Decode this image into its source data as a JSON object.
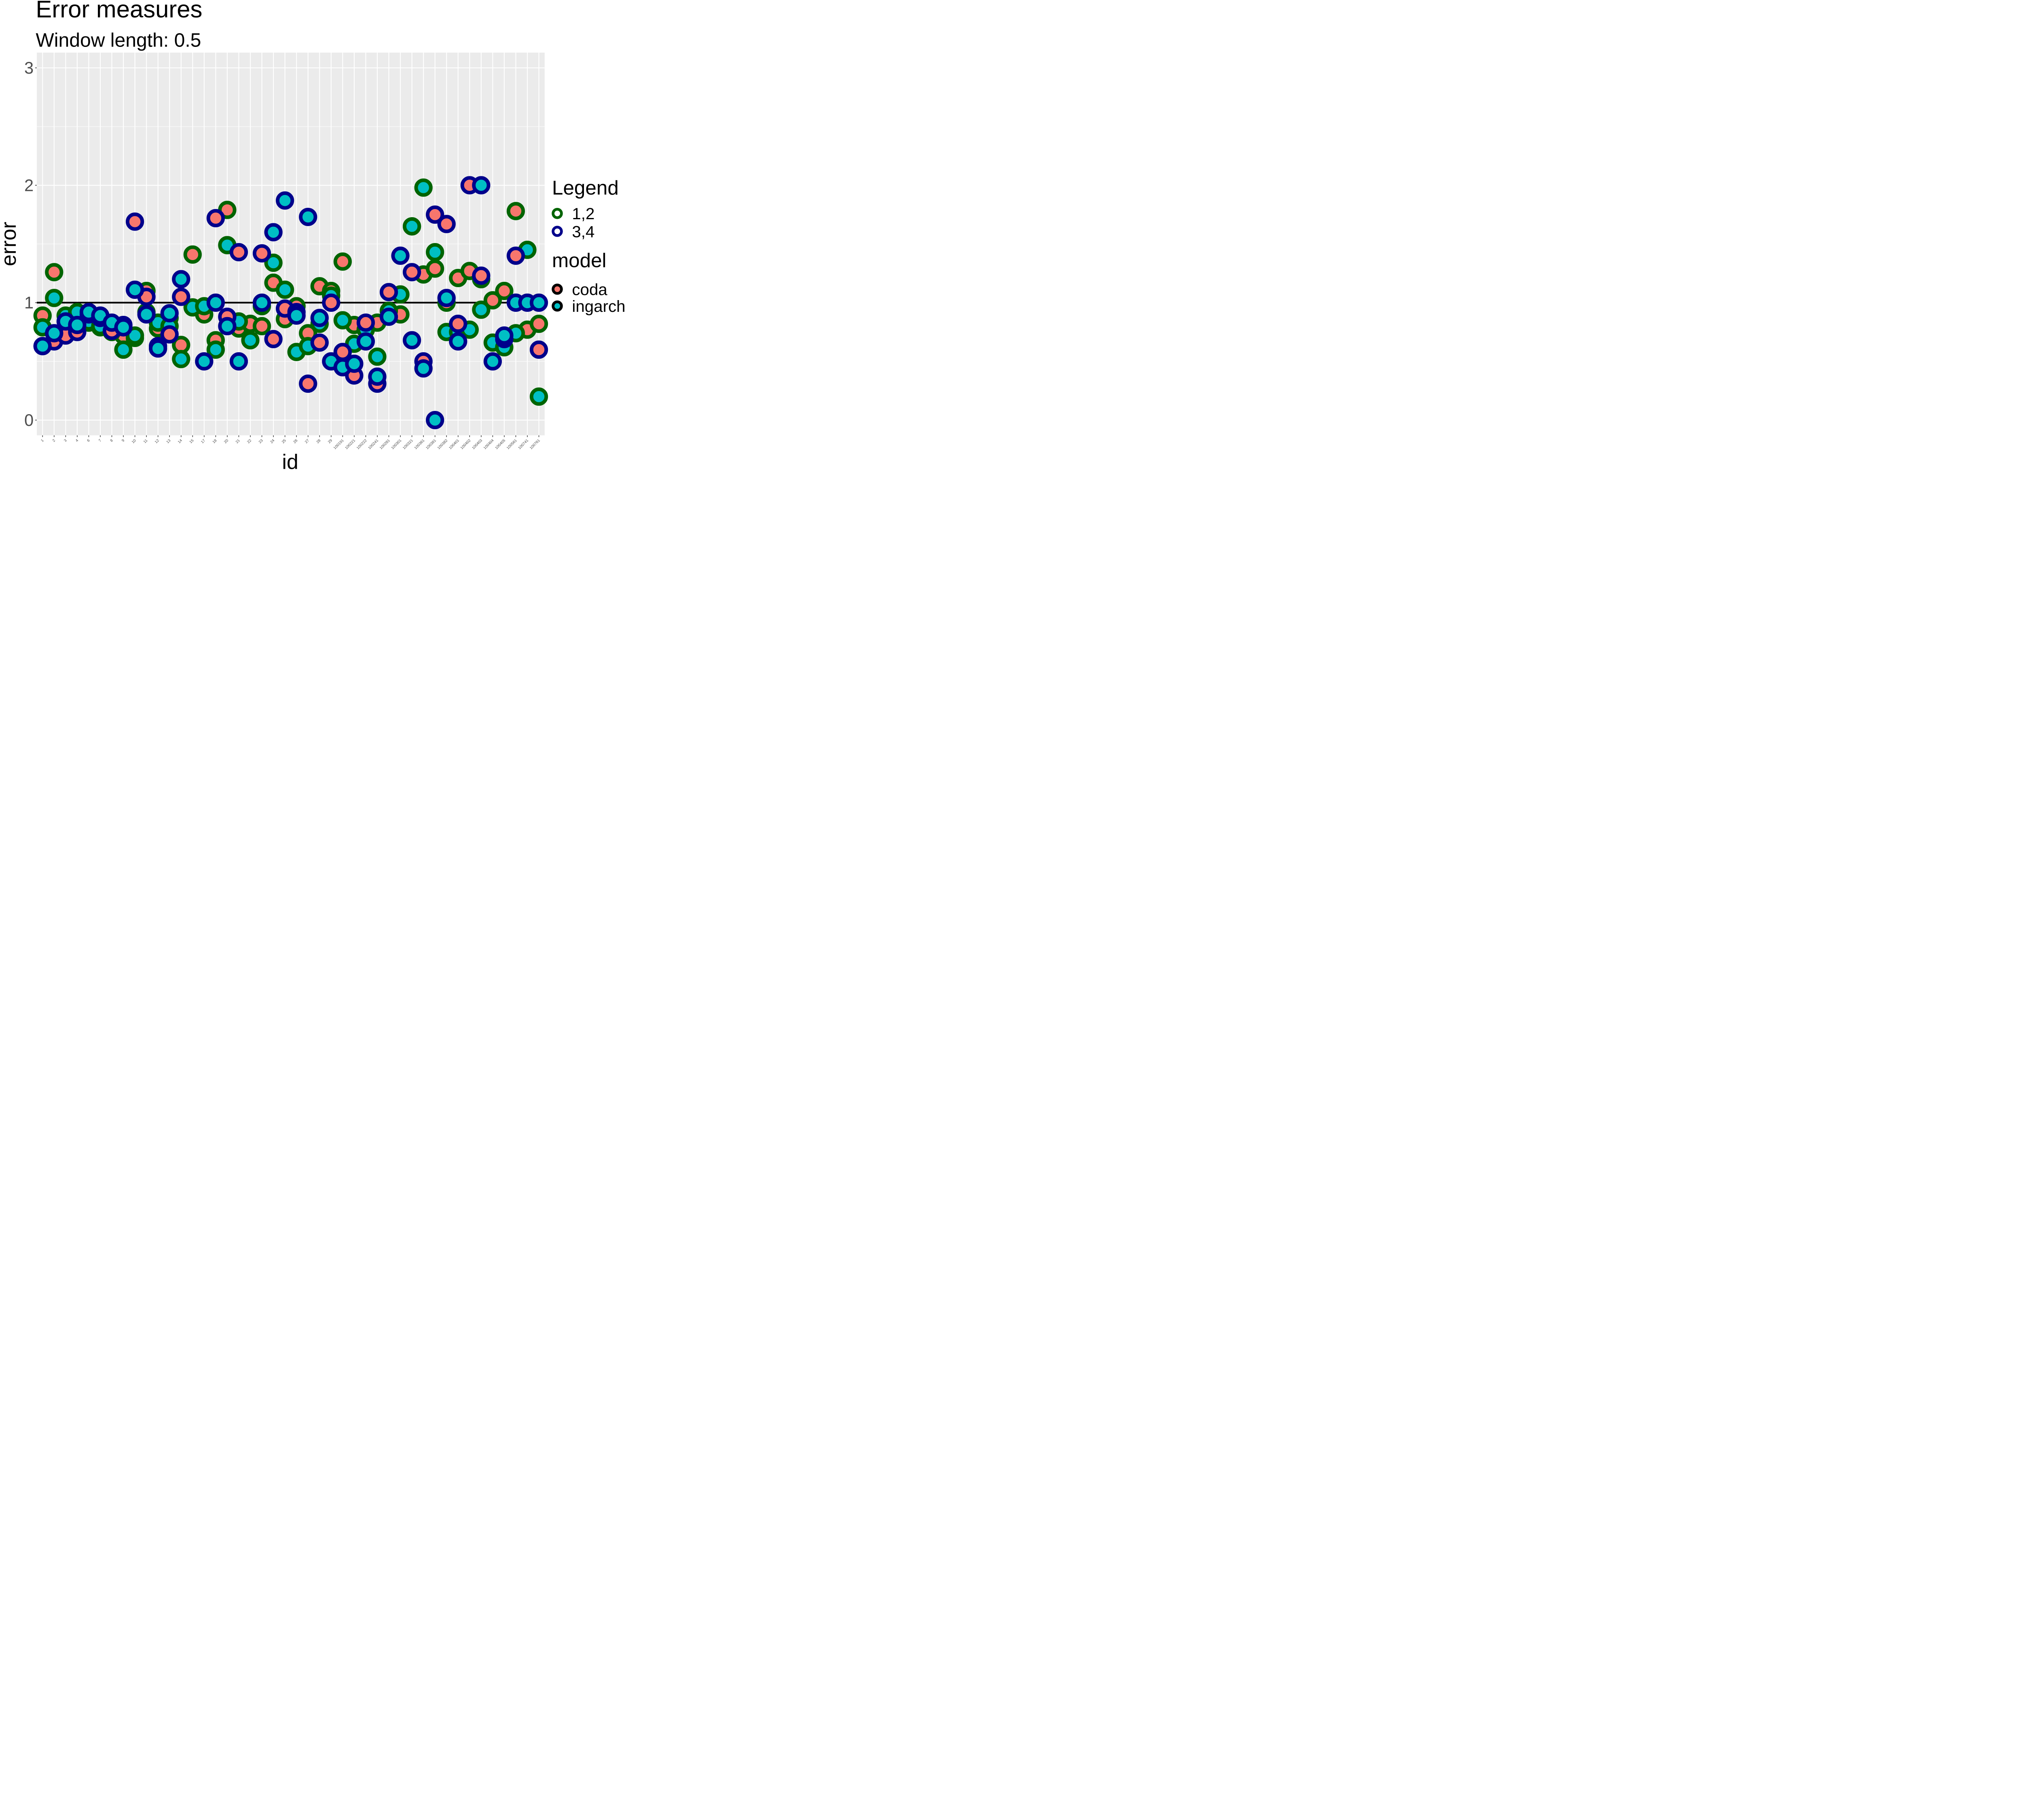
{
  "chart_data": {
    "type": "scatter",
    "title": "Error measures",
    "subtitle": "Window length: 0.5",
    "xlabel": "id",
    "ylabel": "error",
    "categories": [
      "1",
      "2",
      "3",
      "4",
      "6",
      "7",
      "8",
      "9",
      "10",
      "11",
      "12",
      "13",
      "14",
      "15",
      "17",
      "18",
      "20",
      "21",
      "22",
      "23",
      "24",
      "25",
      "26",
      "27",
      "28",
      "29",
      "100191",
      "100221",
      "100222",
      "100241",
      "100281",
      "100301",
      "100321",
      "100361",
      "100381",
      "100382",
      "100401",
      "100402",
      "100403",
      "100404",
      "100405",
      "100561",
      "100741",
      "100761"
    ],
    "ylim": [
      -0.13,
      3.13
    ],
    "y_ticks": [
      0,
      1,
      2,
      3
    ],
    "y_tick_labels": [
      "0",
      "1",
      "2",
      "3"
    ],
    "reference_line": 1,
    "grid": true,
    "legend_position": "right",
    "legend": {
      "title_outline": "Legend",
      "outline_entries": [
        {
          "label": "1,2",
          "color": "#006400"
        },
        {
          "label": "3,4",
          "color": "#00008B"
        }
      ],
      "title_fill": "model",
      "fill_entries": [
        {
          "label": "coda",
          "color": "#F8766D"
        },
        {
          "label": "ingarch",
          "color": "#00BFC4"
        }
      ]
    },
    "colors": {
      "panel_bg": "#EBEBEB",
      "grid": "#FFFFFF",
      "coda": "#F8766D",
      "ingarch": "#00BFC4",
      "group_12": "#006400",
      "group_34": "#00008B",
      "reference_line": "#000000"
    },
    "series": [
      {
        "name": "coda",
        "group": "1,2",
        "values": [
          0.89,
          1.26,
          0.78,
          0.77,
          0.83,
          0.79,
          0.76,
          0.72,
          0.7,
          1.1,
          0.78,
          0.87,
          0.64,
          1.41,
          0.9,
          0.68,
          1.79,
          0.78,
          0.82,
          0.8,
          1.17,
          0.86,
          0.97,
          0.74,
          1.14,
          1.1,
          1.35,
          0.81,
          0.77,
          0.83,
          0.93,
          0.9,
          1.65,
          1.24,
          1.29,
          1.0,
          1.21,
          1.27,
          1.2,
          1.02,
          1.1,
          1.78,
          0.77,
          0.82
        ]
      },
      {
        "name": "ingarch",
        "group": "1,2",
        "values": [
          0.79,
          1.04,
          0.89,
          0.92,
          0.84,
          0.8,
          0.75,
          0.6,
          0.72,
          0.92,
          0.83,
          0.8,
          0.52,
          0.96,
          0.97,
          0.6,
          1.49,
          0.84,
          0.68,
          0.97,
          1.34,
          1.11,
          0.58,
          0.63,
          0.82,
          1.06,
          0.85,
          0.65,
          0.77,
          0.54,
          0.93,
          1.07,
          1.65,
          1.98,
          1.43,
          0.75,
          0.75,
          0.77,
          0.94,
          0.66,
          0.62,
          0.74,
          1.45,
          0.2
        ]
      },
      {
        "name": "coda",
        "group": "3,4",
        "values": [
          0.63,
          0.67,
          0.72,
          0.75,
          0.9,
          0.87,
          0.76,
          0.81,
          1.69,
          1.05,
          0.63,
          0.73,
          1.05,
          null,
          null,
          1.72,
          0.88,
          1.43,
          null,
          1.42,
          0.69,
          0.95,
          0.92,
          0.31,
          0.66,
          1.0,
          0.58,
          0.38,
          0.83,
          0.31,
          1.09,
          null,
          1.26,
          0.5,
          1.75,
          1.67,
          0.82,
          2.0,
          1.23,
          null,
          0.69,
          1.4,
          null,
          0.6
        ]
      },
      {
        "name": "ingarch",
        "group": "3,4",
        "values": [
          0.63,
          0.74,
          0.84,
          0.81,
          0.92,
          0.89,
          0.83,
          0.79,
          1.11,
          0.9,
          0.61,
          0.91,
          1.2,
          null,
          0.5,
          1.0,
          0.8,
          0.5,
          null,
          1.0,
          1.6,
          1.87,
          0.89,
          1.73,
          0.87,
          0.5,
          0.45,
          0.48,
          0.67,
          0.37,
          0.88,
          1.4,
          0.68,
          0.44,
          0.0,
          1.04,
          0.67,
          null,
          2.0,
          0.5,
          0.72,
          1.0,
          1.0,
          1.0
        ]
      }
    ]
  }
}
